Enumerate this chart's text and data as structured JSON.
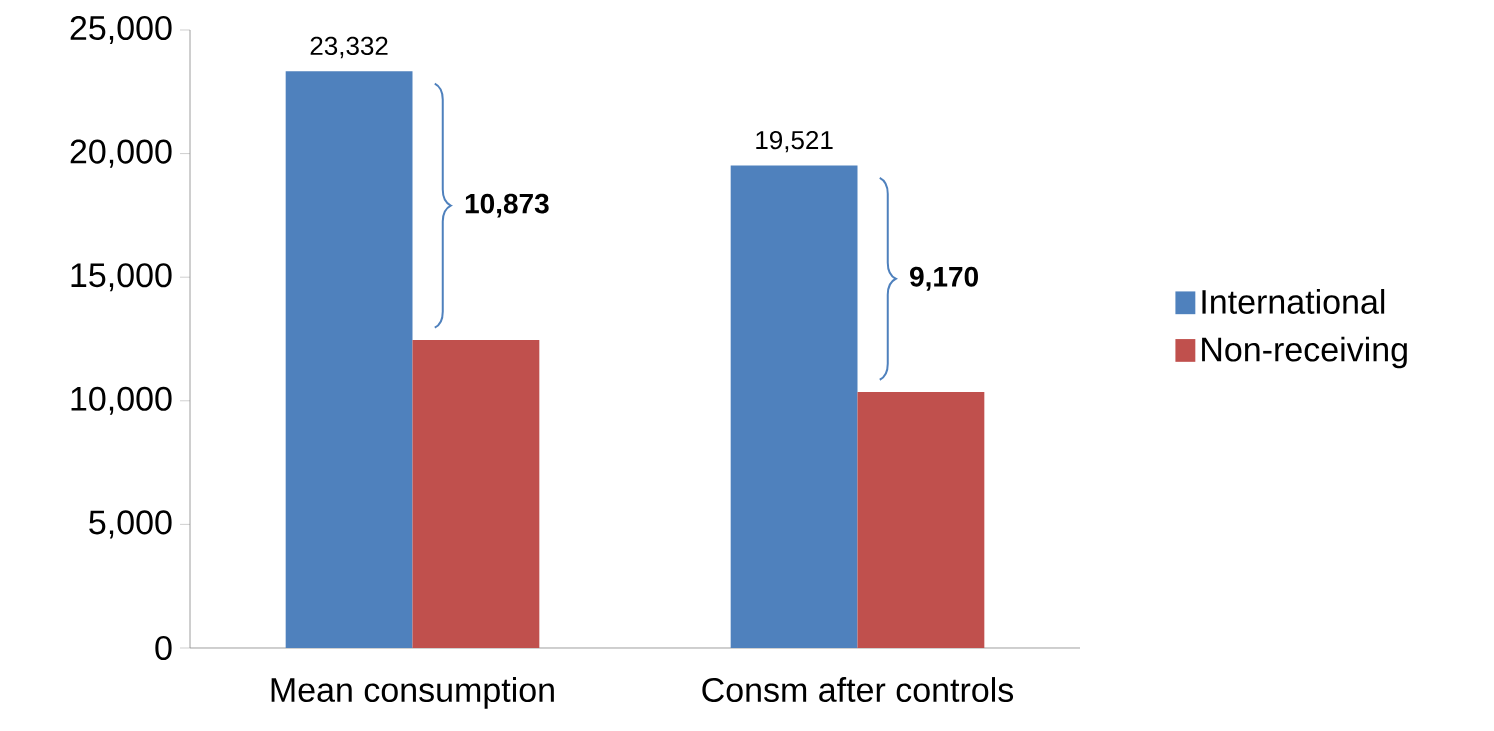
{
  "chart_data": {
    "type": "bar",
    "categories": [
      "Mean consumption",
      "Consm after controls"
    ],
    "series": [
      {
        "name": "International",
        "color": "#4f81bd",
        "values": [
          23332,
          19521
        ],
        "value_labels": [
          "23,332",
          "19,521"
        ]
      },
      {
        "name": "Non-receiving",
        "color": "#c0504d",
        "values": [
          12459,
          10351
        ]
      }
    ],
    "ylim": [
      0,
      25000
    ],
    "yticks": [
      0,
      {
        "value": 5000,
        "label": "5,000"
      },
      {
        "value": 10000,
        "label": "10,000"
      },
      {
        "value": 15000,
        "label": "15,000"
      },
      {
        "value": 20000,
        "label": "20,000"
      },
      {
        "value": 25000,
        "label": "25,000"
      }
    ],
    "legend": "right",
    "grid": false,
    "annotations": [
      "10,873",
      "9,170"
    ]
  }
}
